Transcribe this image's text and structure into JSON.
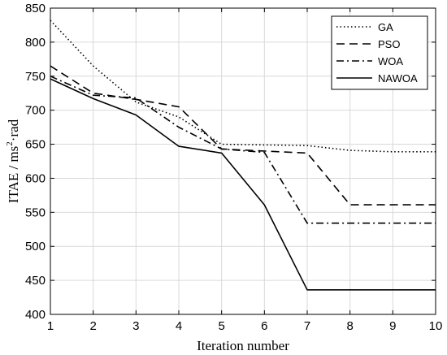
{
  "chart_data": {
    "type": "line",
    "title": "",
    "xlabel": "Iteration number",
    "ylabel": {
      "prefix": "ITAE / ms",
      "superscript": "2",
      "suffix": "·rad"
    },
    "x": [
      1,
      2,
      3,
      4,
      5,
      6,
      7,
      8,
      9,
      10
    ],
    "xlim": [
      1,
      10
    ],
    "ylim": [
      400,
      850
    ],
    "yticks": [
      400,
      450,
      500,
      550,
      600,
      650,
      700,
      750,
      800,
      850
    ],
    "grid": true,
    "legend_position": "top-right",
    "series": [
      {
        "name": "GA",
        "style": "dotted",
        "values": [
          832,
          765,
          712,
          690,
          650,
          649,
          648,
          641,
          639,
          639
        ]
      },
      {
        "name": "PSO",
        "style": "dashed",
        "values": [
          765,
          725,
          716,
          705,
          643,
          640,
          637,
          561,
          561,
          561
        ]
      },
      {
        "name": "WOA",
        "style": "dash-dot",
        "values": [
          750,
          722,
          718,
          675,
          643,
          638,
          534,
          534,
          534,
          534
        ]
      },
      {
        "name": "NAWOA",
        "style": "solid",
        "values": [
          746,
          717,
          693,
          647,
          637,
          561,
          436,
          436,
          436,
          436
        ]
      }
    ],
    "line_color": "#000000"
  }
}
